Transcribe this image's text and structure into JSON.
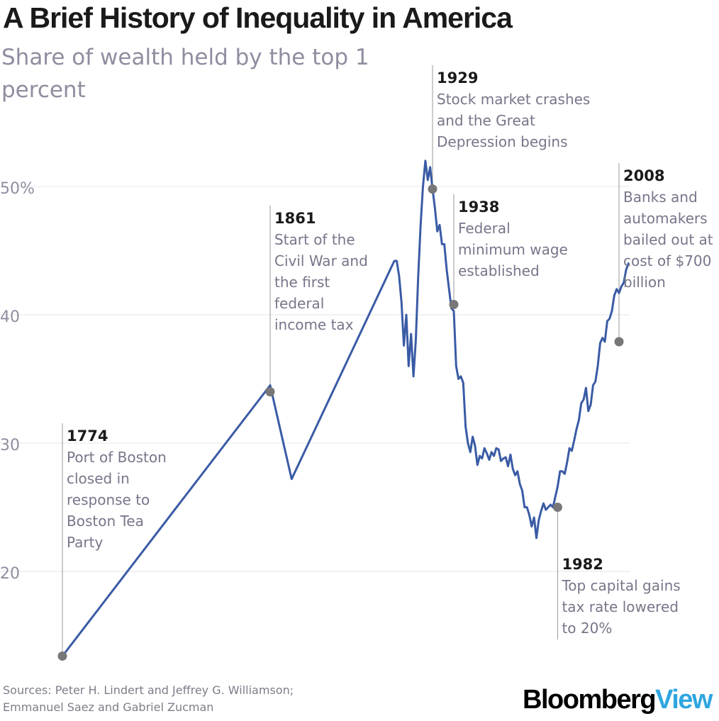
{
  "title": "A Brief History of Inequality in America",
  "subtitle": "Share of wealth held by the top 1 percent",
  "sources": [
    "Sources: Peter H. Lindert and Jeffrey G. Williamson;",
    "Emmanuel Saez and Gabriel Zucman"
  ],
  "brand": {
    "part1": "Bloomberg",
    "part2": "View"
  },
  "colors": {
    "line": "#3a5ba5",
    "marker": "#777777",
    "grid": "#e6e6ea",
    "leader": "#999999",
    "brand_accent": "#2fa6e0"
  },
  "chart_data": {
    "type": "line",
    "title": "A Brief History of Inequality in America",
    "subtitle": "Share of wealth held by the top 1 percent",
    "xlabel": "",
    "ylabel": "",
    "ylim": [
      15.5,
      52
    ],
    "xlim": [
      1774,
      2013
    ],
    "grid": true,
    "y_ticks": [
      {
        "value": 50,
        "label": "50%"
      },
      {
        "value": 40,
        "label": "40"
      },
      {
        "value": 30,
        "label": "30"
      },
      {
        "value": 20,
        "label": "20"
      }
    ],
    "series": [
      {
        "x": [
          1774,
          1861,
          1870,
          1913,
          1914,
          1915,
          1916,
          1917,
          1918,
          1919,
          1920,
          1921,
          1922,
          1923,
          1924,
          1925,
          1926,
          1927,
          1928,
          1929,
          1930,
          1931,
          1932,
          1933,
          1934,
          1935,
          1936,
          1937,
          1938,
          1939,
          1940,
          1941,
          1942,
          1943,
          1944,
          1945,
          1946,
          1947,
          1948,
          1949,
          1950,
          1951,
          1952,
          1953,
          1954,
          1955,
          1956,
          1957,
          1958,
          1959,
          1960,
          1961,
          1962,
          1963,
          1964,
          1965,
          1966,
          1967,
          1968,
          1969,
          1970,
          1971,
          1972,
          1973,
          1974,
          1975,
          1976,
          1977,
          1978,
          1979,
          1980,
          1981,
          1982,
          1983,
          1984,
          1985,
          1986,
          1987,
          1988,
          1989,
          1990,
          1991,
          1992,
          1993,
          1994,
          1995,
          1996,
          1997,
          1998,
          1999,
          2000,
          2001,
          2002,
          2003,
          2004,
          2005,
          2006,
          2007,
          2008,
          2009,
          2010,
          2011,
          2012
        ],
        "y": [
          13.4,
          34.5,
          27.2,
          44.2,
          44.2,
          43.0,
          41.0,
          37.6,
          40.0,
          36.0,
          38.5,
          35.2,
          38.0,
          43.0,
          47.0,
          50.0,
          52.0,
          50.5,
          51.5,
          49.8,
          48.3,
          46.5,
          47.0,
          45.5,
          45.5,
          43.5,
          42.0,
          40.5,
          40.3,
          36.0,
          35.0,
          35.2,
          34.7,
          31.3,
          30.0,
          29.3,
          30.5,
          29.8,
          28.3,
          29.0,
          28.8,
          29.6,
          29.2,
          28.7,
          29.3,
          29.0,
          29.6,
          29.5,
          28.6,
          28.8,
          28.9,
          28.2,
          29.1,
          28.0,
          27.5,
          27.8,
          26.8,
          26.3,
          25.0,
          25.0,
          24.4,
          23.5,
          24.2,
          22.6,
          24.0,
          24.7,
          25.3,
          24.8,
          25.0,
          25.2,
          25.0,
          25.8,
          26.6,
          27.8,
          27.8,
          27.6,
          28.5,
          29.6,
          29.4,
          30.2,
          31.1,
          31.8,
          33.1,
          33.4,
          34.3,
          32.5,
          33.0,
          34.5,
          34.8,
          36.0,
          37.8,
          38.2,
          37.9,
          39.5,
          39.7,
          40.3,
          41.5,
          42.0,
          41.7,
          42.2,
          42.5,
          43.5,
          44.0
        ]
      }
    ],
    "annotations": [
      {
        "year": "1774",
        "x": 1774,
        "y": 13.4,
        "lines": [
          "Port of Boston",
          "closed in",
          "response to",
          "Boston Tea",
          "Party"
        ]
      },
      {
        "year": "1861",
        "x": 1861,
        "y": 34.0,
        "lines": [
          "Start of the",
          "Civil War and",
          "the first",
          "federal",
          "income tax"
        ]
      },
      {
        "year": "1929",
        "x": 1929,
        "y": 49.8,
        "lines": [
          "Stock market crashes",
          "and the Great",
          "Depression begins"
        ]
      },
      {
        "year": "1938",
        "x": 1938,
        "y": 40.8,
        "lines": [
          "Federal",
          "minimum wage",
          "established"
        ]
      },
      {
        "year": "1982",
        "x": 1982,
        "y": 25.0,
        "lines": [
          "Top capital gains",
          "tax rate lowered",
          "to 20%"
        ]
      },
      {
        "year": "2008",
        "x": 2008,
        "y": 37.9,
        "lines": [
          "Banks and",
          "automakers",
          "bailed out at",
          "cost of $700",
          "billion"
        ]
      }
    ]
  }
}
